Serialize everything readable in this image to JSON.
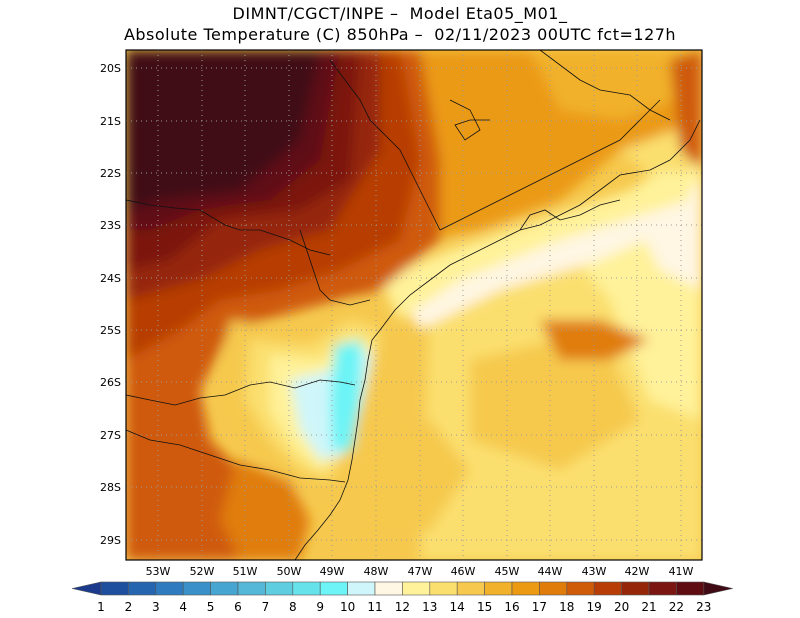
{
  "title": {
    "line1": "DIMNT/CGCT/INPE –  Model Eta05_M01_",
    "line2": "Absolute Temperature (C) 850hPa –  02/11/2023 00UTC fct=127h"
  },
  "map": {
    "lon_labels": [
      "53W",
      "52W",
      "51W",
      "50W",
      "49W",
      "48W",
      "47W",
      "46W",
      "45W",
      "44W",
      "43W",
      "42W",
      "41W"
    ],
    "lat_labels": [
      "20S",
      "21S",
      "22S",
      "23S",
      "24S",
      "25S",
      "26S",
      "27S",
      "28S",
      "29S"
    ],
    "grid": "dotted"
  },
  "colorbar": {
    "labels": [
      "1",
      "2",
      "3",
      "4",
      "5",
      "6",
      "7",
      "8",
      "9",
      "10",
      "11",
      "12",
      "13",
      "14",
      "15",
      "16",
      "17",
      "18",
      "19",
      "20",
      "21",
      "22",
      "23"
    ],
    "colors": [
      "#1b3a8c",
      "#1e4f9e",
      "#2565b0",
      "#2e7bbf",
      "#3a91c9",
      "#47a5d1",
      "#55b8d8",
      "#5fcde0",
      "#66e2ea",
      "#6cf4f6",
      "#cff6fa",
      "#fff6e3",
      "#fff29a",
      "#fbdf6e",
      "#f6c94e",
      "#f1b12a",
      "#eb9a12",
      "#e07d0a",
      "#cf5a08",
      "#b73c06",
      "#952607",
      "#7b1511",
      "#5e0b12",
      "#3f0a14"
    ]
  }
}
